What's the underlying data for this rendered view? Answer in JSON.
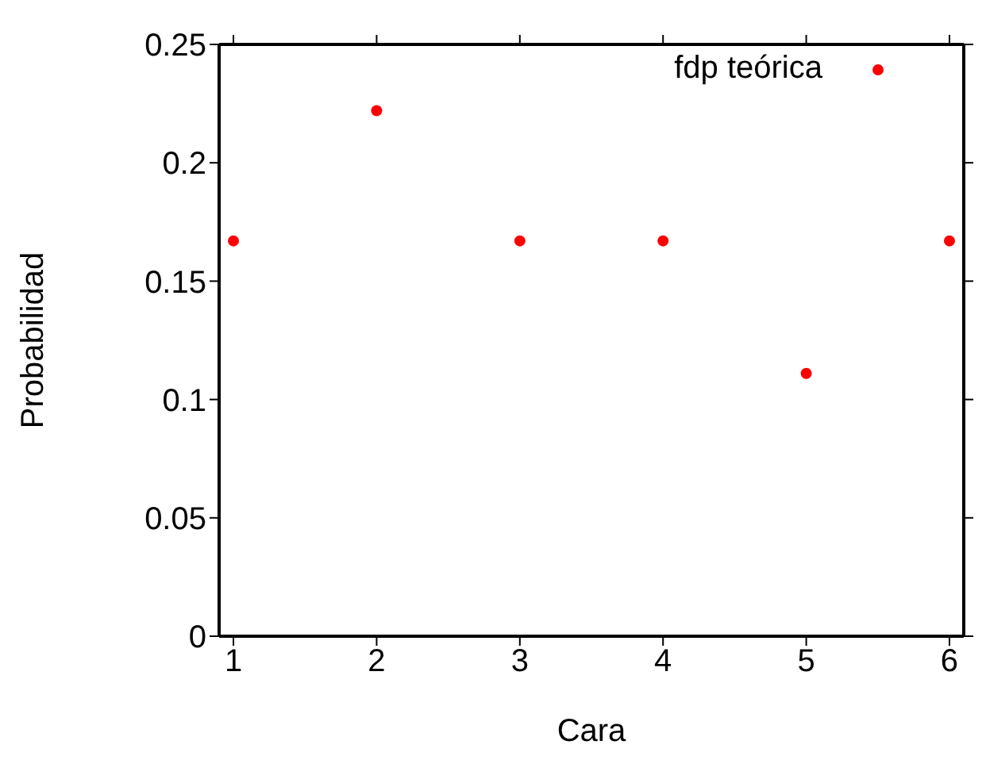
{
  "chart_data": {
    "type": "scatter",
    "xlabel": "Cara",
    "ylabel": "Probabilidad",
    "x": [
      1,
      2,
      3,
      4,
      5,
      6
    ],
    "series": [
      {
        "name": "fdp teórica",
        "color": "#ff0000",
        "values": [
          0.167,
          0.222,
          0.167,
          0.167,
          0.111,
          0.167
        ]
      }
    ],
    "xlim": [
      0.9,
      6.1
    ],
    "xticks": [
      1,
      2,
      3,
      4,
      5,
      6
    ],
    "ylim": [
      0,
      0.25
    ],
    "yticks": [
      0,
      0.05,
      0.1,
      0.15,
      0.2,
      0.25
    ],
    "legend": "top right",
    "marker": "circle"
  }
}
